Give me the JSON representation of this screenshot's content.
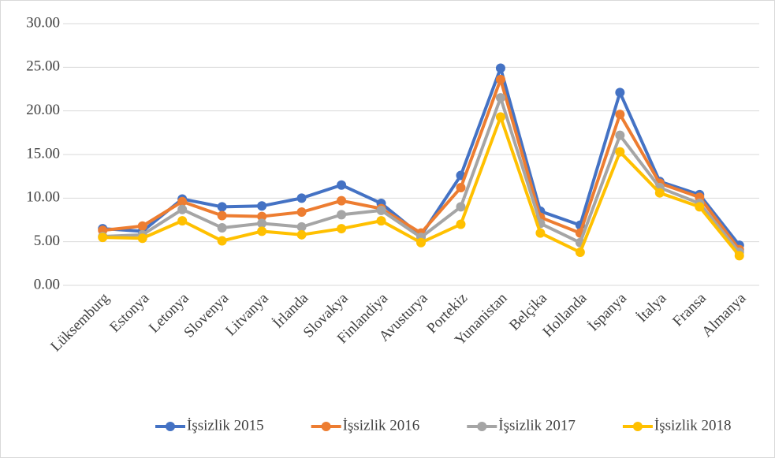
{
  "chart_data": {
    "type": "line",
    "categories": [
      "Lüksemburg",
      "Estonya",
      "Letonya",
      "Slovenya",
      "Litvanya",
      "İrlanda",
      "Slovakya",
      "Finlandiya",
      "Avusturya",
      "Portekiz",
      "Yunanistan",
      "Belçika",
      "Hollanda",
      "İspanya",
      "İtalya",
      "Fransa",
      "Almanya"
    ],
    "series": [
      {
        "name": "İşsizlik 2015",
        "color": "#4472c4",
        "values": [
          6.5,
          6.2,
          9.9,
          9.0,
          9.1,
          10.0,
          11.5,
          9.4,
          5.7,
          12.6,
          24.9,
          8.5,
          6.9,
          22.1,
          11.9,
          10.4,
          4.6
        ]
      },
      {
        "name": "İşsizlik 2016",
        "color": "#ed7d31",
        "values": [
          6.3,
          6.8,
          9.6,
          8.0,
          7.9,
          8.4,
          9.7,
          8.8,
          6.0,
          11.2,
          23.6,
          7.8,
          6.0,
          19.6,
          11.7,
          10.1,
          4.1
        ]
      },
      {
        "name": "İşsizlik 2017",
        "color": "#a5a5a5",
        "values": [
          5.6,
          5.8,
          8.7,
          6.6,
          7.1,
          6.7,
          8.1,
          8.6,
          5.5,
          9.0,
          21.5,
          7.1,
          4.9,
          17.2,
          11.2,
          9.4,
          3.8
        ]
      },
      {
        "name": "İşsizlik 2018",
        "color": "#ffc000",
        "values": [
          5.5,
          5.4,
          7.4,
          5.1,
          6.2,
          5.8,
          6.5,
          7.4,
          4.9,
          7.0,
          19.3,
          6.0,
          3.8,
          15.3,
          10.6,
          9.0,
          3.4
        ]
      }
    ],
    "ylim": [
      0,
      30
    ],
    "yticks": [
      {
        "value": 0,
        "label": "0.00"
      },
      {
        "value": 5,
        "label": "5.00"
      },
      {
        "value": 10,
        "label": "10.00"
      },
      {
        "value": 15,
        "label": "15.00"
      },
      {
        "value": 20,
        "label": "20.00"
      },
      {
        "value": 25,
        "label": "25.00"
      },
      {
        "value": 30,
        "label": "30.00"
      }
    ],
    "grid": true,
    "legend": "bottom"
  }
}
